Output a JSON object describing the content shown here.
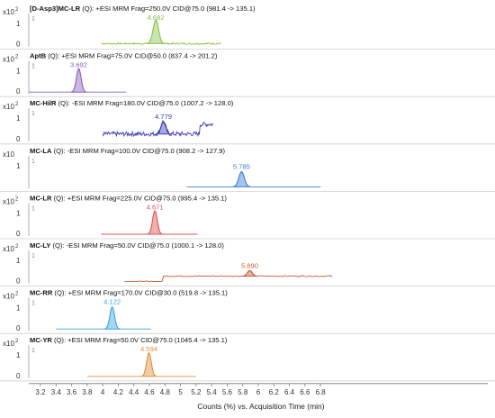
{
  "chart_data": {
    "type": "line",
    "xlabel": "Counts (%) vs. Acquisition Time (min)",
    "xlim": [
      3.05,
      8.95
    ],
    "xticks": [
      "3.2",
      "3.4",
      "3.6",
      "3.8",
      "4",
      "4.2",
      "4.4",
      "4.6",
      "4.8",
      "5",
      "5.2",
      "5.4",
      "5.6",
      "5.8",
      "6",
      "6.2",
      "6.4",
      "6.6",
      "6.8"
    ],
    "y_multiplier": "x10",
    "panels": [
      {
        "compound": "[D-Asp3]MC-LR",
        "title_rest": "(Q): +ESI MRM Frag=250.0V CID@75.0 (981.4 -> 135.1)",
        "exponent": "2",
        "y_ticks": [
          "1",
          "0"
        ],
        "color": "#8cc44a",
        "peak_label": "4.682",
        "peak_rt": 4.682,
        "baseline_range": [
          3.98,
          5.52
        ],
        "peak_height": 0.85,
        "peak_width": 0.035,
        "baseline_level": 0.04,
        "noise": 0.03
      },
      {
        "compound": "AptB",
        "title_rest": "(Q): +ESI MRM Frag=75.0V CID@50.0 (837.4 -> 201.2)",
        "exponent": "2",
        "y_ticks": [
          "1",
          "0"
        ],
        "color": "#8a5fbf",
        "peak_label": "3.692",
        "peak_rt": 3.692,
        "baseline_range": [
          3.05,
          4.3
        ],
        "peak_height": 0.85,
        "peak_width": 0.03,
        "baseline_level": 0.0,
        "noise": 0.0
      },
      {
        "compound": "MC-HilR",
        "title_rest": "(Q): -ESI MRM Frag=180.0V CID@75.0 (1007.2 -> 128.0)",
        "exponent": "2",
        "y_ticks": [
          "1",
          "0"
        ],
        "color": "#3f3fb5",
        "peak_label": "4.779",
        "peak_rt": 4.779,
        "baseline_range": [
          4.0,
          5.42
        ],
        "peak_height": 0.45,
        "peak_width": 0.03,
        "baseline_level": 0.2,
        "noise": 0.08
      },
      {
        "compound": "MC-LA",
        "title_rest": "(Q): -ESI MRM Frag=100.0V CID@75.0 (908.2 -> 127.9)",
        "exponent": "",
        "y_ticks": [
          "1",
          ""
        ],
        "color": "#3a7fd0",
        "peak_label": "5.785",
        "peak_rt": 5.785,
        "baseline_range": [
          5.08,
          6.8
        ],
        "peak_height": 0.55,
        "peak_width": 0.035,
        "baseline_level": 0.0,
        "noise": 0.0
      },
      {
        "compound": "MC-LR",
        "title_rest": "(Q): +ESI MRM Frag=225.0V CID@75.0 (995.4 -> 135.1)",
        "exponent": "2",
        "y_ticks": [
          "1",
          "0"
        ],
        "color": "#e05050",
        "peak_label": "4.671",
        "peak_rt": 4.671,
        "baseline_range": [
          3.98,
          5.22
        ],
        "peak_height": 0.85,
        "peak_width": 0.03,
        "baseline_level": 0.0,
        "noise": 0.0
      },
      {
        "compound": "MC-LY",
        "title_rest": "(Q): -ESI MRM Frag=50.0V CID@75.0 (1000.1 -> 128.0)",
        "exponent": "2",
        "y_ticks": [
          "1",
          "0"
        ],
        "color": "#c0603a",
        "peak_label": "5.890",
        "peak_rt": 5.89,
        "baseline_range": [
          4.28,
          6.95
        ],
        "peak_height": 0.2,
        "peak_width": 0.03,
        "baseline_level": 0.0,
        "noise": 0.02
      },
      {
        "compound": "MC-RR",
        "title_rest": "(Q): +ESI MRM Frag=170.0V CID@30.0 (519.8 -> 135.1)",
        "exponent": "2",
        "y_ticks": [
          "1",
          "0"
        ],
        "color": "#3aa6e0",
        "peak_label": "4.122",
        "peak_rt": 4.122,
        "baseline_range": [
          3.4,
          4.62
        ],
        "peak_height": 0.8,
        "peak_width": 0.03,
        "baseline_level": 0.0,
        "noise": 0.0
      },
      {
        "compound": "MC-YR",
        "title_rest": "(Q): +ESI MRM Frag=50.0V CID@75.0 (1045.4 -> 135.1)",
        "exponent": "2",
        "y_ticks": [
          "1",
          "0"
        ],
        "color": "#e09040",
        "peak_label": "4.594",
        "peak_rt": 4.594,
        "baseline_range": [
          3.8,
          5.2
        ],
        "peak_height": 0.85,
        "peak_width": 0.03,
        "baseline_level": 0.0,
        "noise": 0.0
      }
    ]
  }
}
